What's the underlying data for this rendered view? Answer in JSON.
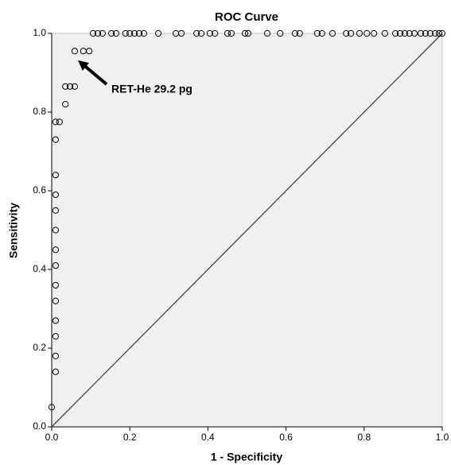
{
  "chart_data": {
    "type": "scatter",
    "title": "ROC Curve",
    "x_label": "1 - Specificity",
    "y_label": "Sensitivity",
    "annotation": "RET-He 29.2 pg",
    "x": [
      0,
      0.01,
      0.01,
      0.01,
      0.01,
      0.01,
      0.01,
      0.01,
      0.01,
      0.01,
      0.01,
      0.01,
      0.01,
      0.01,
      0.01,
      0.02,
      0.035,
      0.035,
      0.047,
      0.059,
      0.059,
      0.081,
      0.096,
      0.106,
      0.118,
      0.13,
      0.153,
      0.165,
      0.189,
      0.2,
      0.212,
      0.224,
      0.236,
      0.273,
      0.318,
      0.332,
      0.371,
      0.383,
      0.405,
      0.418,
      0.45,
      0.46,
      0.495,
      0.503,
      0.552,
      0.585,
      0.623,
      0.635,
      0.68,
      0.692,
      0.719,
      0.754,
      0.766,
      0.788,
      0.807,
      0.825,
      0.853,
      0.88,
      0.892,
      0.904,
      0.916,
      0.929,
      0.945,
      0.957,
      0.969,
      0.982,
      0.992,
      1
    ],
    "values": [
      0.05,
      0.14,
      0.18,
      0.23,
      0.27,
      0.32,
      0.36,
      0.41,
      0.45,
      0.5,
      0.55,
      0.59,
      0.64,
      0.73,
      0.775,
      0.775,
      0.82,
      0.865,
      0.865,
      0.865,
      0.955,
      0.955,
      0.955,
      1,
      1,
      1,
      1,
      1,
      1,
      1,
      1,
      1,
      1,
      1,
      1,
      1,
      1,
      1,
      1,
      1,
      1,
      1,
      1,
      1,
      1,
      1,
      1,
      1,
      1,
      1,
      1,
      1,
      1,
      1,
      1,
      1,
      1,
      1,
      1,
      1,
      1,
      1,
      1,
      1,
      1,
      1,
      1,
      1
    ],
    "xlim": [
      0,
      1
    ],
    "ylim": [
      0,
      1
    ],
    "xticks": [
      {
        "value": 0,
        "label": "0.0"
      },
      0.2,
      0.4,
      0.6,
      0.8,
      {
        "value": 1,
        "label": "1.0"
      }
    ],
    "yticks": [
      {
        "value": 0,
        "label": "0.0"
      },
      0.2,
      0.4,
      0.6,
      0.8,
      {
        "value": 1,
        "label": "1.0"
      }
    ],
    "background": "#f0f0f0",
    "marker_color": "#000000"
  }
}
